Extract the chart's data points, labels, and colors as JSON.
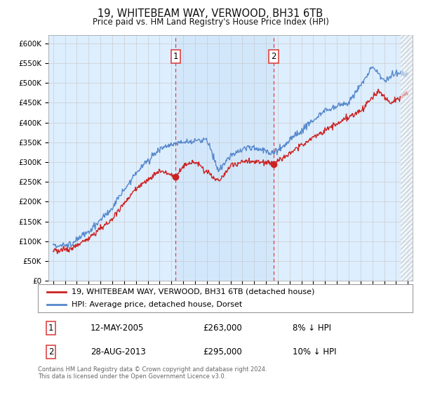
{
  "title": "19, WHITEBEAM WAY, VERWOOD, BH31 6TB",
  "subtitle": "Price paid vs. HM Land Registry's House Price Index (HPI)",
  "red_label": "19, WHITEBEAM WAY, VERWOOD, BH31 6TB (detached house)",
  "blue_label": "HPI: Average price, detached house, Dorset",
  "footnote": "Contains HM Land Registry data © Crown copyright and database right 2024.\nThis data is licensed under the Open Government Licence v3.0.",
  "transaction1": {
    "label": "1",
    "date": "12-MAY-2005",
    "price": "£263,000",
    "hpi": "8% ↓ HPI"
  },
  "transaction2": {
    "label": "2",
    "date": "28-AUG-2013",
    "price": "£295,000",
    "hpi": "10% ↓ HPI"
  },
  "vline1_x": 2005.37,
  "vline2_x": 2013.66,
  "trans1_price": 263000,
  "trans2_price": 295000,
  "ylim": [
    0,
    620000
  ],
  "yticks": [
    0,
    50000,
    100000,
    150000,
    200000,
    250000,
    300000,
    350000,
    400000,
    450000,
    500000,
    550000,
    600000
  ],
  "xlim_left": 1994.6,
  "xlim_right": 2025.4,
  "background_color": "#ffffff",
  "plot_bg_color": "#ddeeff",
  "grid_color": "#cccccc",
  "red_color": "#cc2222",
  "blue_color": "#5588cc",
  "vline_color": "#dd4444"
}
